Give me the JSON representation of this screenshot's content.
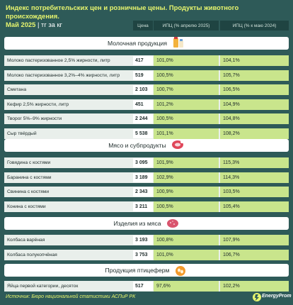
{
  "header": {
    "title_line1": "Индекс потребительских цен и розничные цены. Продукты животного происхождения.",
    "title_line2": "Май 2025",
    "units": "| тг за кг"
  },
  "columns": {
    "price": "Цена",
    "ipc_prev": "ИПЦ (% апрелю 2025)",
    "ipc_year": "ИПЦ (% к маю 2024)"
  },
  "sections": [
    {
      "title": "Молочная продукция",
      "icon": "milk-icon",
      "rows": [
        {
          "name": "Молоко пастеризованное 2,5% жирности, литр",
          "price": "417",
          "ipc_prev": "101,0%",
          "ipc_year": "104,1%"
        },
        {
          "name": "Молоко пастеризованное 3,2%–4% жирности, литр",
          "price": "519",
          "ipc_prev": "100,5%",
          "ipc_year": "105,7%"
        },
        {
          "name": "Сметана",
          "price": "2 103",
          "ipc_prev": "100,7%",
          "ipc_year": "106,5%"
        },
        {
          "name": "Кефир 2,5% жирности, литр",
          "price": "451",
          "ipc_prev": "101,2%",
          "ipc_year": "104,9%"
        },
        {
          "name": "Творог 5%–9% жирности",
          "price": "2 244",
          "ipc_prev": "100,5%",
          "ipc_year": "104,8%"
        },
        {
          "name": "Сыр твёрдый",
          "price": "5 538",
          "ipc_prev": "101,1%",
          "ipc_year": "108,2%"
        }
      ]
    },
    {
      "title": "Мясо и субпродукты",
      "icon": "meat-icon",
      "rows": [
        {
          "name": "Говядина с костями",
          "price": "3 095",
          "ipc_prev": "101,9%",
          "ipc_year": "115,3%"
        },
        {
          "name": "Баранина с костями",
          "price": "3 189",
          "ipc_prev": "102,9%",
          "ipc_year": "114,3%"
        },
        {
          "name": "Свинина с костями",
          "price": "2 343",
          "ipc_prev": "100,9%",
          "ipc_year": "103,5%"
        },
        {
          "name": "Конина с костями",
          "price": "3 211",
          "ipc_prev": "100,5%",
          "ipc_year": "105,4%"
        }
      ]
    },
    {
      "title": "Изделия из мяса",
      "icon": "sausage-icon",
      "rows": [
        {
          "name": "Колбаса варёная",
          "price": "3 193",
          "ipc_prev": "100,8%",
          "ipc_year": "107,9%"
        },
        {
          "name": "Колбаса полукопчёная",
          "price": "3 753",
          "ipc_prev": "101,0%",
          "ipc_year": "106,7%"
        }
      ]
    },
    {
      "title": "Продукция птицеферм",
      "icon": "egg-icon",
      "rows": [
        {
          "name": "Яйца первой категории, десяток",
          "price": "517",
          "ipc_prev": "97,6%",
          "ipc_year": "102,2%"
        }
      ]
    }
  ],
  "footer": {
    "source": "Источник: Бюро национальной статистики АСПиР РК",
    "brand": "EnergyProm"
  },
  "colors": {
    "background": "#2e5a58",
    "title": "#e7f56e",
    "bar": "#c9e58c",
    "row": "#e9efeb"
  },
  "chart_data": {
    "type": "table",
    "title": "Индекс потребительских цен и розничные цены. Продукты животного происхождения. Май 2025",
    "columns": [
      "Цена",
      "ИПЦ (% апрелю 2025)",
      "ИПЦ (% к маю 2024)"
    ],
    "rows": [
      {
        "group": "Молочная продукция",
        "name": "Молоко пастеризованное 2,5% жирности, литр",
        "price": 417,
        "ipc_prev": 101.0,
        "ipc_year": 104.1
      },
      {
        "group": "Молочная продукция",
        "name": "Молоко пастеризованное 3,2%–4% жирности, литр",
        "price": 519,
        "ipc_prev": 100.5,
        "ipc_year": 105.7
      },
      {
        "group": "Молочная продукция",
        "name": "Сметана",
        "price": 2103,
        "ipc_prev": 100.7,
        "ipc_year": 106.5
      },
      {
        "group": "Молочная продукция",
        "name": "Кефир 2,5% жирности, литр",
        "price": 451,
        "ipc_prev": 101.2,
        "ipc_year": 104.9
      },
      {
        "group": "Молочная продукция",
        "name": "Творог 5%–9% жирности",
        "price": 2244,
        "ipc_prev": 100.5,
        "ipc_year": 104.8
      },
      {
        "group": "Молочная продукция",
        "name": "Сыр твёрдый",
        "price": 5538,
        "ipc_prev": 101.1,
        "ipc_year": 108.2
      },
      {
        "group": "Мясо и субпродукты",
        "name": "Говядина с костями",
        "price": 3095,
        "ipc_prev": 101.9,
        "ipc_year": 115.3
      },
      {
        "group": "Мясо и субпродукты",
        "name": "Баранина с костями",
        "price": 3189,
        "ipc_prev": 102.9,
        "ipc_year": 114.3
      },
      {
        "group": "Мясо и субпродукты",
        "name": "Свинина с костями",
        "price": 2343,
        "ipc_prev": 100.9,
        "ipc_year": 103.5
      },
      {
        "group": "Мясо и субпродукты",
        "name": "Конина с костями",
        "price": 3211,
        "ipc_prev": 100.5,
        "ipc_year": 105.4
      },
      {
        "group": "Изделия из мяса",
        "name": "Колбаса варёная",
        "price": 3193,
        "ipc_prev": 100.8,
        "ipc_year": 107.9
      },
      {
        "group": "Изделия из мяса",
        "name": "Колбаса полукопчёная",
        "price": 3753,
        "ipc_prev": 101.0,
        "ipc_year": 106.7
      },
      {
        "group": "Продукция птицеферм",
        "name": "Яйца первой категории, десяток",
        "price": 517,
        "ipc_prev": 97.6,
        "ipc_year": 102.2
      }
    ]
  }
}
